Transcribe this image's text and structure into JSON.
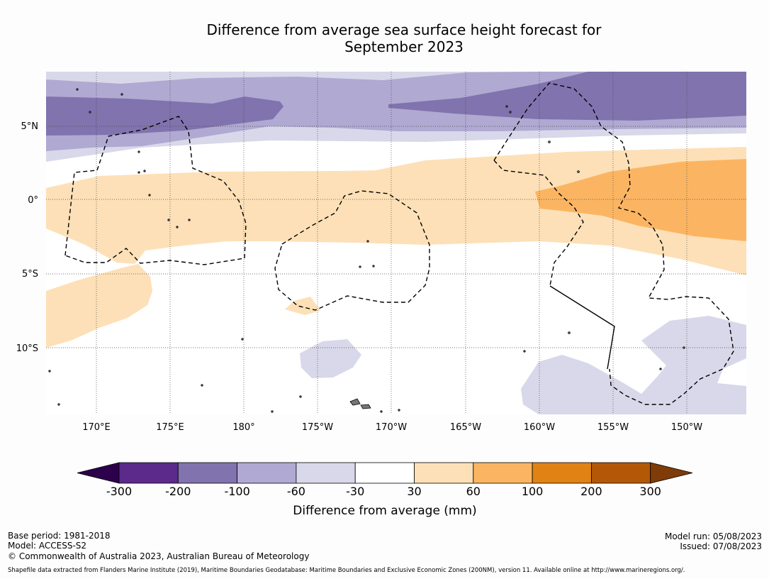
{
  "title": {
    "line1": "Difference from average sea surface height forecast for",
    "line2": "September 2023"
  },
  "map": {
    "lat_labels": [
      "5°N",
      "0°",
      "5°S",
      "10°S"
    ],
    "lon_labels": [
      "170°E",
      "175°E",
      "180°",
      "175°W",
      "170°W",
      "165°W",
      "160°W",
      "155°W",
      "150°W"
    ],
    "lat_range": [
      -14.5,
      8.7
    ],
    "lon_range": [
      166.6,
      213.9
    ]
  },
  "colorbar": {
    "title": "Difference from average (mm)",
    "tick_labels": [
      "-300",
      "-200",
      "-100",
      "-60",
      "-30",
      "30",
      "60",
      "100",
      "200",
      "300"
    ],
    "colors": [
      "#5b2a8a",
      "#8073ae",
      "#b0a9d2",
      "#d8d8ea",
      "#ffffff",
      "#fde0b7",
      "#fbb562",
      "#e08214",
      "#b35806"
    ],
    "extend_low_color": "#2d004b",
    "extend_high_color": "#7f3b08"
  },
  "colors": {
    "neg_weak": "#d8d8ea",
    "neg_mid": "#b0a9d2",
    "neg_strong": "#8073ae",
    "pos_weak": "#fde0b7",
    "pos_mid": "#fbb562"
  },
  "footer": {
    "base_period": "Base period: 1981-2018",
    "model": "Model: ACCESS-S2",
    "copyright": "© Commonwealth of Australia 2023, Australian Bureau of Meteorology",
    "model_run": "Model run: 05/08/2023",
    "issued": "Issued: 07/08/2023",
    "shapefile": "Shapefile data extracted from Flanders Marine Institute (2019), Maritime Boundaries Geodatabase: Maritime Boundaries and Exclusive Economic Zones (200NM), version 11. Available online at http://www.marineregions.org/."
  }
}
